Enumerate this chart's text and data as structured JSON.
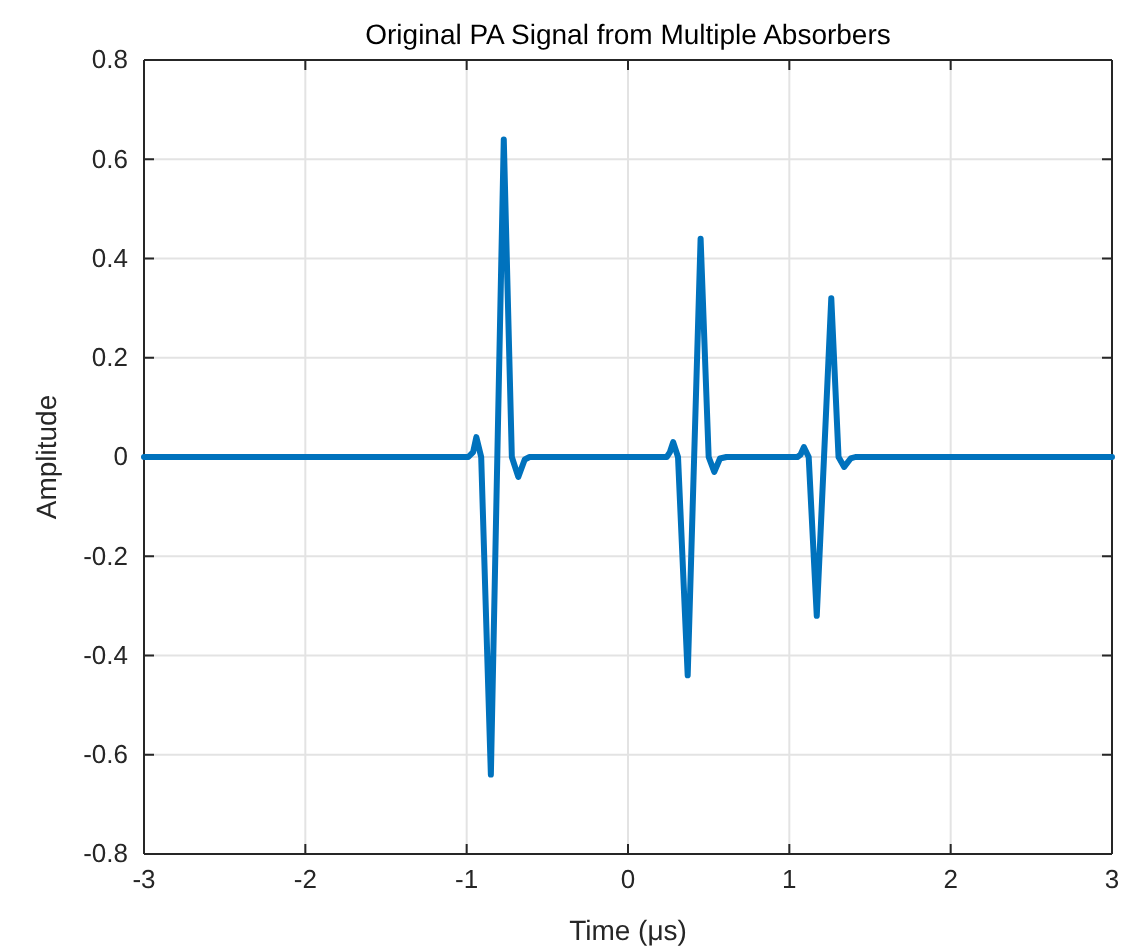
{
  "chart_data": {
    "type": "line",
    "title": "Original PA Signal from Multiple Absorbers",
    "xlabel": "Time (μs)",
    "ylabel": "Amplitude",
    "xlim": [
      -3,
      3
    ],
    "xticks": [
      -3,
      -2,
      -1,
      0,
      1,
      2,
      3
    ],
    "ylim": [
      -0.8,
      0.8
    ],
    "yticks": [
      -0.8,
      -0.6,
      -0.4,
      -0.2,
      0,
      0.2,
      0.4,
      0.6,
      0.8
    ],
    "grid": true,
    "line_style": "solid",
    "marker": "none",
    "series": [
      {
        "color": "#0072bd",
        "x": [
          -3,
          -0.99,
          -0.96,
          -0.94,
          -0.91,
          -0.85,
          -0.81,
          -0.77,
          -0.72,
          -0.68,
          -0.64,
          -0.61,
          0.24,
          0.26,
          0.28,
          0.31,
          0.37,
          0.41,
          0.45,
          0.5,
          0.535,
          0.57,
          0.61,
          1.05,
          1.07,
          1.09,
          1.12,
          1.17,
          1.215,
          1.26,
          1.305,
          1.34,
          1.38,
          1.41,
          3
        ],
        "values": [
          0,
          0,
          0.01,
          0.04,
          0,
          -0.64,
          0,
          0.64,
          0,
          -0.04,
          -0.005,
          0,
          0,
          0.01,
          0.03,
          0,
          -0.44,
          0,
          0.44,
          0,
          -0.03,
          -0.003,
          0,
          0,
          0.005,
          0.02,
          0,
          -0.32,
          0,
          0.32,
          0,
          -0.02,
          -0.003,
          0,
          0
        ]
      }
    ]
  }
}
